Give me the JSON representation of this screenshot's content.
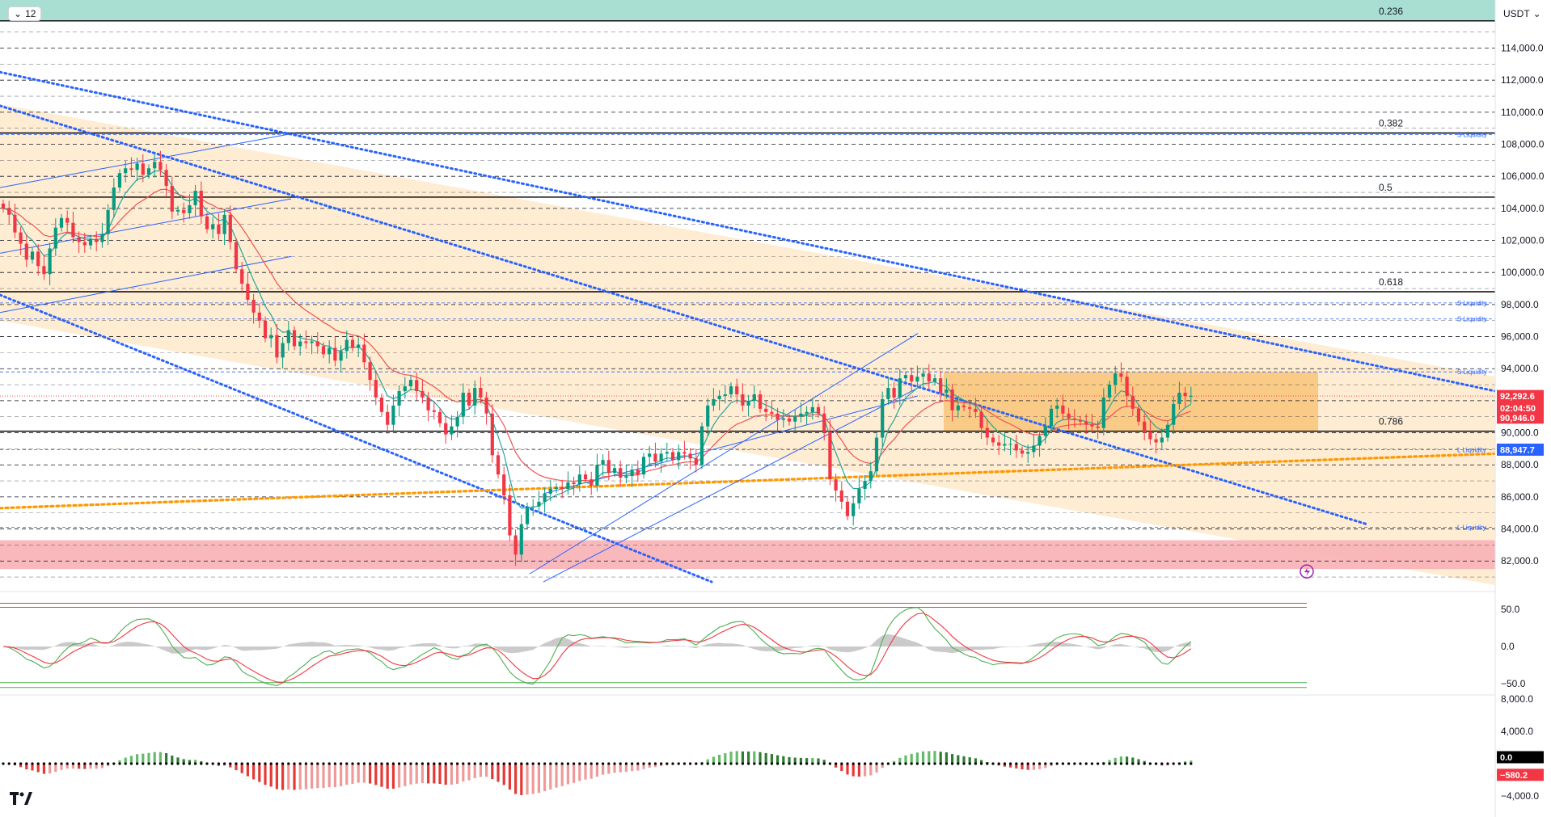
{
  "toolbar": {
    "interval": "12",
    "currency": "USDT"
  },
  "colors": {
    "up": "#089981",
    "down": "#f23645",
    "ema_fast": "#26a69a",
    "ema_slow": "#ef5350",
    "channel": "#2962ff",
    "orange_trend": "#ff9800",
    "zone_tan": "#fde5c4",
    "zone_range": "#f8c374",
    "zone_red": "#f9b4b8",
    "zone_teal": "#a9dfd2"
  },
  "chart_data": [
    {
      "type": "line",
      "pane": "price",
      "ylim": [
        80500,
        117000
      ],
      "y_ticks": [
        "114,000.0",
        "112,000.0",
        "110,000.0",
        "108,000.0",
        "106,000.0",
        "104,000.0",
        "102,000.0",
        "100,000.0",
        "98,000.0",
        "96,000.0",
        "94,000.0",
        "92,000.0",
        "90,000.0",
        "88,000.0",
        "86,000.0",
        "84,000.0",
        "82,000.0"
      ],
      "tick_values": [
        114000,
        112000,
        110000,
        108000,
        106000,
        104000,
        102000,
        100000,
        98000,
        96000,
        94000,
        92000,
        90000,
        88000,
        86000,
        84000,
        82000
      ],
      "fib_levels": [
        {
          "label": "0.236",
          "price": 115700
        },
        {
          "label": "0.382",
          "price": 108700
        },
        {
          "label": "0.5",
          "price": 104700
        },
        {
          "label": "0.618",
          "price": 98800
        },
        {
          "label": "0.786",
          "price": 90100
        }
      ],
      "liquidity_levels": [
        {
          "label": "S Liquidity",
          "price": 108600
        },
        {
          "label": "S Liquidity",
          "price": 98100
        },
        {
          "label": "S Liquidity",
          "price": 97100
        },
        {
          "label": "S Liquidity",
          "price": 93800
        },
        {
          "label": "L Liquidity",
          "price": 88950
        },
        {
          "label": "L Liquidity",
          "price": 84100
        }
      ],
      "price_tags": [
        {
          "label": "92,292.6",
          "price": 92292.6,
          "color": "#f23645"
        },
        {
          "label": "02:04:50",
          "price": 91550,
          "color": "#f23645"
        },
        {
          "label": "90,946.0",
          "price": 90946,
          "color": "#f23645"
        },
        {
          "label": "88,947.7",
          "price": 88947.7,
          "color": "#2962ff"
        }
      ],
      "series": [
        {
          "values": [
            104000,
            103600,
            102500,
            101800,
            100800,
            101300,
            100400,
            99900,
            101500,
            102800,
            103400,
            103100,
            102200,
            101900,
            101700,
            102100,
            101900,
            102400,
            103900,
            105300,
            106200,
            106500,
            106400,
            106800,
            106100,
            106500,
            106900,
            106400,
            105400,
            103800,
            103900,
            103700,
            104200,
            105100,
            103500,
            102700,
            103000,
            102400,
            103600,
            101900,
            100200,
            99300,
            98300,
            97500,
            97000,
            95900,
            96100,
            94700,
            95600,
            96400,
            95400,
            95700,
            95600,
            95700,
            95400,
            94900,
            95300,
            94500,
            95100,
            95800,
            95300,
            95500,
            94400,
            93300,
            92200,
            91300,
            90500,
            91700,
            92600,
            92900,
            93300,
            92600,
            92200,
            91400,
            91300,
            90600,
            89900,
            90400,
            91000,
            92500,
            91700,
            92800,
            92200,
            91200,
            88600,
            87400,
            86100,
            83600,
            82400,
            84300,
            85400,
            85400,
            85700,
            86200,
            86500,
            86600,
            86500,
            86900,
            86800,
            87400,
            87100,
            86700,
            88000,
            88300,
            87500,
            87800,
            87200,
            87300,
            87700,
            87400,
            88500,
            88700,
            88200,
            88700,
            88800,
            88300,
            88800,
            88700,
            88400,
            88000,
            90400,
            91700,
            92100,
            92300,
            92400,
            92900,
            92400,
            91700,
            92000,
            92400,
            91500,
            91300,
            91200,
            90800,
            90900,
            90700,
            91000,
            91200,
            91300,
            91600,
            91200,
            90100,
            87100,
            86400,
            85700,
            84800,
            85600,
            86500,
            87000,
            87600,
            89700,
            92100,
            92800,
            92200,
            93400,
            93600,
            93200,
            93500,
            93700,
            93200,
            93400,
            92500,
            92700,
            91400,
            91700,
            91600,
            91500,
            91300,
            90300,
            89700,
            89400,
            89200,
            89300,
            89300,
            88900,
            88700,
            88800,
            89200,
            89800,
            90400,
            91500,
            91700,
            91200,
            90900,
            90800,
            90700,
            90500,
            90400,
            90300,
            92200,
            93000,
            93700,
            93500,
            92300,
            91500,
            90700,
            90100,
            89600,
            89400,
            89700,
            90500,
            91800,
            92500,
            92300,
            92300
          ]
        }
      ]
    },
    {
      "type": "line",
      "pane": "oscillator",
      "ylim": [
        -65,
        65
      ],
      "y_ticks": [
        "50.0",
        "0.0",
        "−50.0"
      ],
      "tick_values": [
        50,
        0,
        -50
      ],
      "overbought": 58,
      "oversold": -55
    },
    {
      "type": "bar",
      "pane": "histogram",
      "ylim": [
        -5500,
        8500
      ],
      "y_ticks": [
        "8,000.0",
        "4,000.0",
        "−4,000.0"
      ],
      "tick_values": [
        8000,
        4000,
        -4000
      ],
      "tags": [
        {
          "label": "0.0",
          "value": 0,
          "color": "#000000"
        },
        {
          "label": "−580.2",
          "value": -580.2,
          "color": "#f23645"
        }
      ]
    }
  ]
}
